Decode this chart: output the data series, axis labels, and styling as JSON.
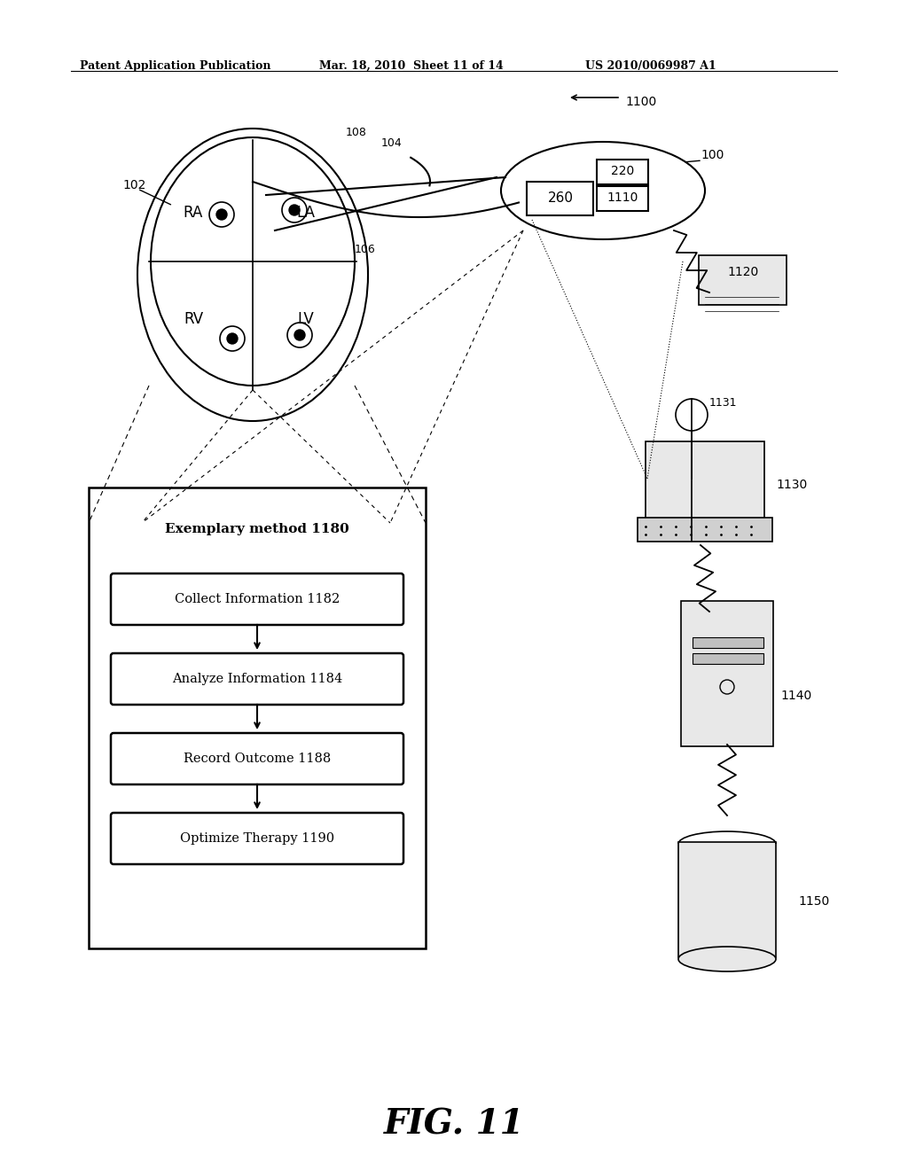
{
  "bg_color": "#ffffff",
  "header_left": "Patent Application Publication",
  "header_mid": "Mar. 18, 2010  Sheet 11 of 14",
  "header_right": "US 2010/0069987 A1",
  "fig_label": "FIG. 11",
  "system_label": "1100",
  "heart_label": "102",
  "heart_chambers": [
    "RA",
    "LA",
    "RV",
    "LV"
  ],
  "lead_labels": [
    "104",
    "106",
    "108"
  ],
  "imd_label": "100",
  "imd_boxes": [
    "260",
    "220",
    "1110"
  ],
  "programmer_label": "1120",
  "laptop_label": "1130",
  "circle_label": "1131",
  "server_label": "1140",
  "database_label": "1150",
  "flowchart_title": "Exemplary method 1180",
  "flow_steps": [
    {
      "label": "Collect Information 1182",
      "id": "1182"
    },
    {
      "label": "Analyze Information 1184",
      "id": "1184"
    },
    {
      "label": "Record Outcome 1188",
      "id": "1188"
    },
    {
      "label": "Optimize Therapy 1190",
      "id": "1190"
    }
  ]
}
